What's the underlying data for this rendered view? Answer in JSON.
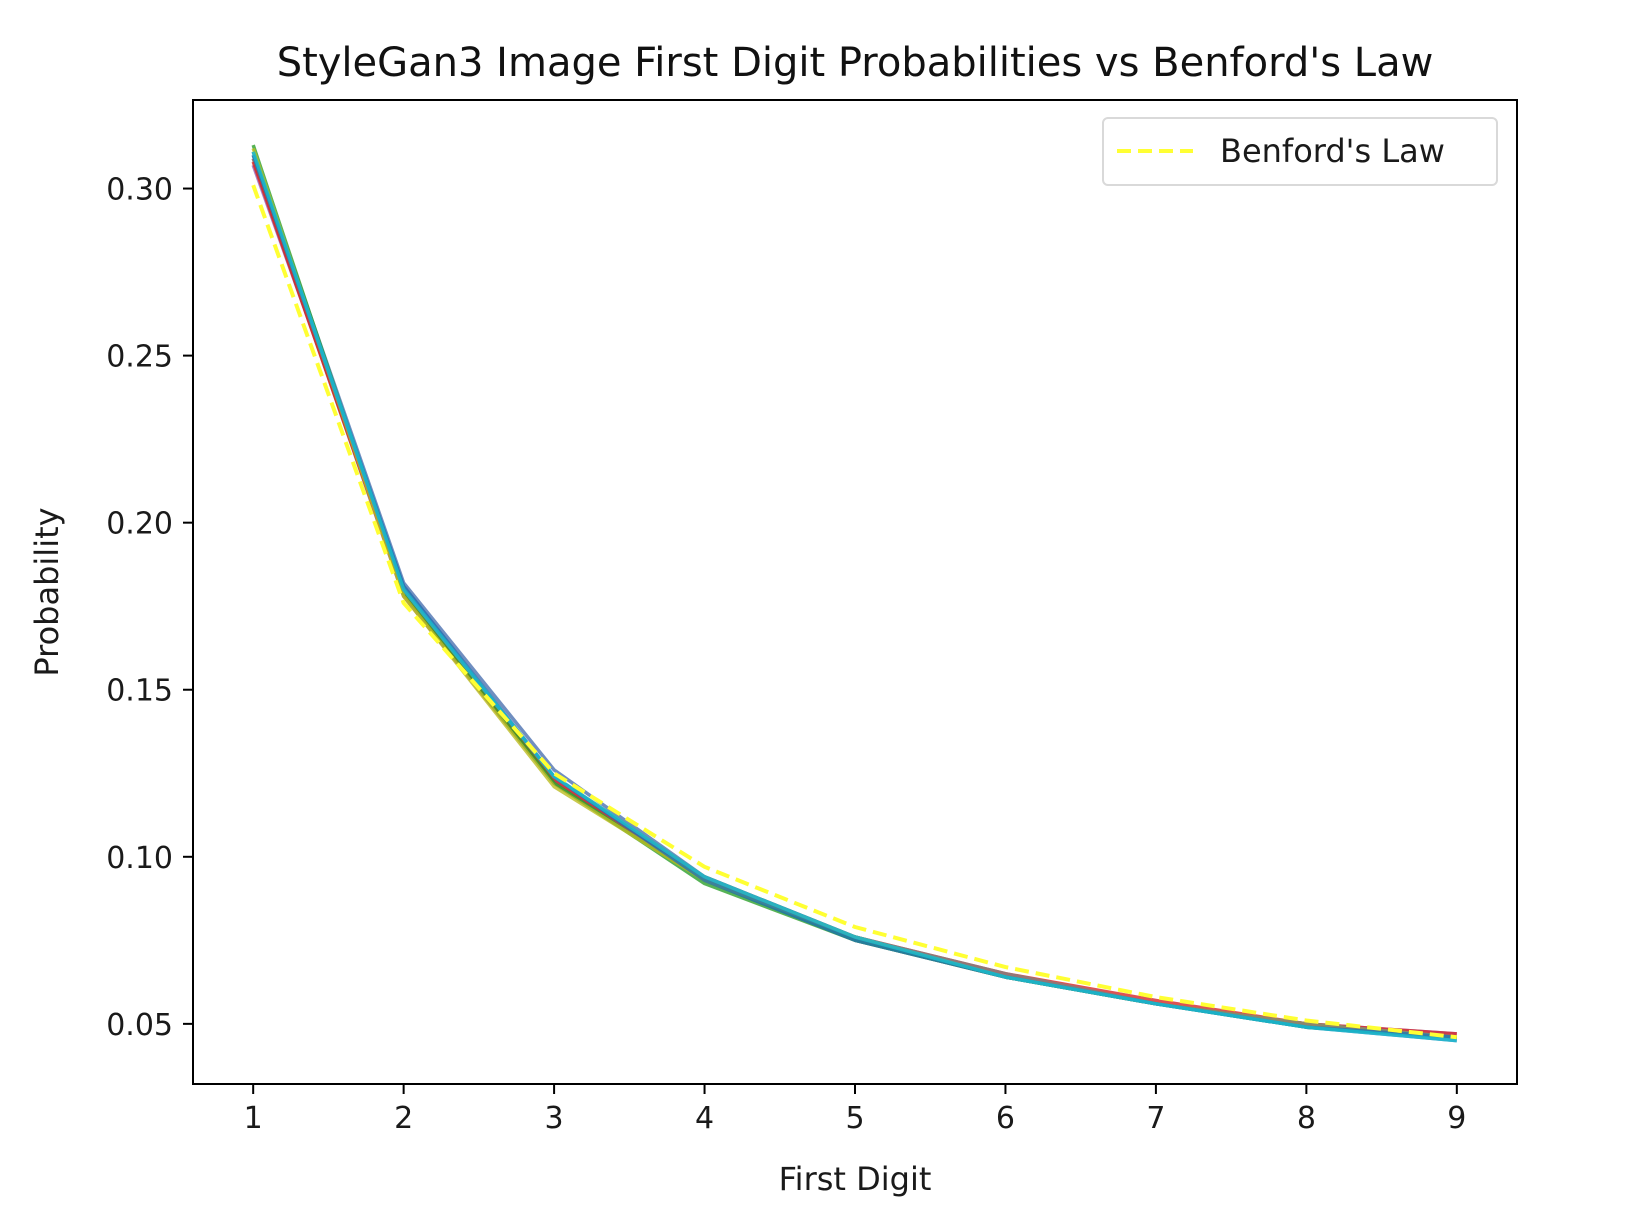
{
  "chart_data": {
    "type": "line",
    "title": "StyleGan3 Image First Digit Probabilities vs Benford's Law",
    "xlabel": "First Digit",
    "ylabel": "Probability",
    "x": [
      1,
      2,
      3,
      4,
      5,
      6,
      7,
      8,
      9
    ],
    "xlim": [
      0.6,
      9.4
    ],
    "ylim": [
      0.032,
      0.3265
    ],
    "xticks": [
      1,
      2,
      3,
      4,
      5,
      6,
      7,
      8,
      9
    ],
    "yticks": [
      0.05,
      0.1,
      0.15,
      0.2,
      0.25,
      0.3
    ],
    "ytick_labels": [
      "0.05",
      "0.10",
      "0.15",
      "0.20",
      "0.25",
      "0.30"
    ],
    "grid": false,
    "legend": {
      "position": "top-right",
      "entries": [
        "Benford's Law"
      ]
    },
    "series": [
      {
        "color": "#9467bd",
        "values": [
          0.307,
          0.181,
          0.123,
          0.093,
          0.076,
          0.064,
          0.056,
          0.05,
          0.047
        ]
      },
      {
        "color": "#8c564b",
        "values": [
          0.309,
          0.178,
          0.122,
          0.093,
          0.075,
          0.064,
          0.056,
          0.05,
          0.046
        ]
      },
      {
        "color": "#d62728",
        "values": [
          0.308,
          0.179,
          0.123,
          0.094,
          0.076,
          0.065,
          0.057,
          0.05,
          0.047
        ]
      },
      {
        "color": "#4c72b0",
        "values": [
          0.311,
          0.182,
          0.126,
          0.094,
          0.076,
          0.064,
          0.056,
          0.049,
          0.045
        ]
      },
      {
        "color": "#2ca02c",
        "values": [
          0.313,
          0.179,
          0.122,
          0.092,
          0.075,
          0.064,
          0.056,
          0.049,
          0.046
        ]
      },
      {
        "color": "#bcbd22",
        "values": [
          0.312,
          0.178,
          0.121,
          0.093,
          0.076,
          0.064,
          0.056,
          0.05,
          0.046
        ]
      },
      {
        "color": "#7f7f7f",
        "values": [
          0.31,
          0.18,
          0.124,
          0.094,
          0.076,
          0.065,
          0.056,
          0.05,
          0.046
        ]
      },
      {
        "color": "#1f77b4",
        "values": [
          0.31,
          0.181,
          0.124,
          0.093,
          0.075,
          0.064,
          0.056,
          0.049,
          0.046
        ]
      },
      {
        "color": "#17becf",
        "values": [
          0.311,
          0.18,
          0.124,
          0.094,
          0.076,
          0.064,
          0.056,
          0.049,
          0.045
        ]
      },
      {
        "name": "Benford's Law",
        "color": "#ffff33",
        "dashed": true,
        "values": [
          0.301,
          0.176,
          0.125,
          0.097,
          0.079,
          0.067,
          0.058,
          0.051,
          0.046
        ]
      }
    ]
  }
}
